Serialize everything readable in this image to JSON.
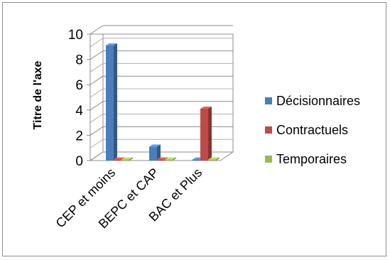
{
  "chart_data": {
    "type": "bar",
    "categories": [
      "CEP et moins",
      "BEPC et CAP",
      "BAC et Plus"
    ],
    "series": [
      {
        "name": "Décisionnaires",
        "color": "#4a7ebb",
        "values": [
          9.1,
          1.1,
          0
        ]
      },
      {
        "name": "Contractuels",
        "color": "#be4b48",
        "values": [
          0,
          0,
          4.1
        ]
      },
      {
        "name": "Temporaires",
        "color": "#98b954",
        "values": [
          0,
          0,
          0
        ]
      }
    ],
    "ylabel": "Titre de l'axe",
    "ylim": [
      0,
      10
    ],
    "yticks": [
      0,
      2,
      4,
      6,
      8,
      10
    ],
    "grid": true,
    "legend_position": "right",
    "style": "3d-clustered-bar"
  }
}
